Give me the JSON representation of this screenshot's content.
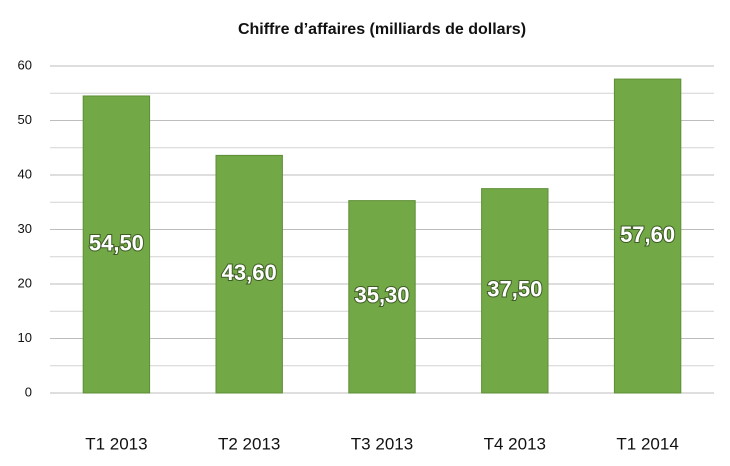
{
  "chart_data": {
    "type": "bar",
    "title": "Chiffre d’affaires (milliards de dollars)",
    "categories": [
      "T1 2013",
      "T2 2013",
      "T3 2013",
      "T4 2013",
      "T1 2014"
    ],
    "values": [
      54.5,
      43.6,
      35.3,
      37.5,
      57.6
    ],
    "value_labels": [
      "54,50",
      "43,60",
      "35,30",
      "37,50",
      "57,60"
    ],
    "color": "#72a846",
    "ylim": [
      0,
      60
    ],
    "yticks": [
      0,
      10,
      20,
      30,
      40,
      50,
      60
    ],
    "minor_yticks": [
      5,
      15,
      25,
      35,
      45,
      55
    ],
    "grid": true
  }
}
